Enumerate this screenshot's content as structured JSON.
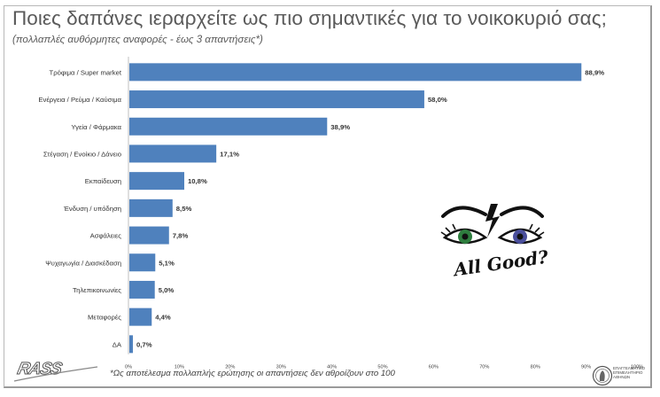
{
  "header": {
    "title": "Ποιες δαπάνες ιεραρχείτε ως πιο σημαντικές για το νοικοκυριό σας;",
    "subtitle": "(πολλαπλές αυθόρμητες αναφορές - έως 3 απαντήσεις*)"
  },
  "chart_data": {
    "type": "bar",
    "orientation": "horizontal",
    "categories": [
      "Τρόφιμα / Super market",
      "Ενέργεια / Ρεύμα / Καύσιμα",
      "Υγεία / Φάρμακα",
      "Στέγαση / Ενοίκιο / Δάνειο",
      "Εκπαίδευση",
      "Ένδυση / υπόδηση",
      "Ασφάλειες",
      "Ψυχαγωγία / Διασκέδαση",
      "Τηλεπικοινωνίες",
      "Μεταφορές",
      "ΔΑ"
    ],
    "values": [
      88.9,
      58.0,
      38.9,
      17.1,
      10.8,
      8.5,
      7.8,
      5.1,
      5.0,
      4.4,
      0.7
    ],
    "value_labels": [
      "88,9%",
      "58,0%",
      "38,9%",
      "17,1%",
      "10,8%",
      "8,5%",
      "7,8%",
      "5,1%",
      "5,0%",
      "4,4%",
      "0,7%"
    ],
    "xlim": [
      0,
      100
    ],
    "x_ticks": [
      "0%",
      "10%",
      "20%",
      "30%",
      "40%",
      "50%",
      "60%",
      "70%",
      "80%",
      "90%",
      "100%"
    ],
    "grid": false,
    "bar_color": "#4f81bd"
  },
  "logo": {
    "text": "All Good?"
  },
  "footer": {
    "brand": "RASS",
    "note": "*Ως αποτέλεσμα πολλαπλής ερώτησης οι απαντήσεις δεν αθροίζουν στο 100",
    "chamber_line1": "ΕΠΑΓΓΕΛΜΑΤΙΚΟ",
    "chamber_line2": "ΕΠΙΜΕΛΗΤΗΡΙΟ",
    "chamber_line3": "ΑΘΗΝΩΝ"
  }
}
